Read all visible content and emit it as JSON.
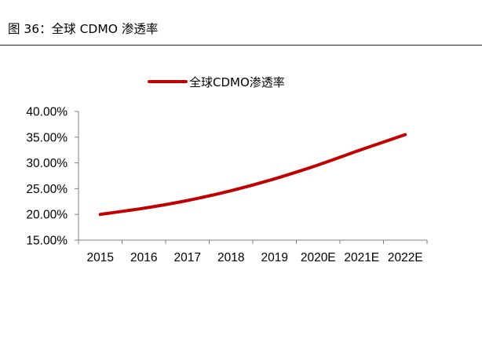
{
  "figure": {
    "caption": "图 36：全球 CDMO 渗透率"
  },
  "chart_data": {
    "type": "line",
    "categories": [
      "2015",
      "2016",
      "2017",
      "2018",
      "2019",
      "2020E",
      "2021E",
      "2022E"
    ],
    "series": [
      {
        "name": "全球CDMO渗透率",
        "values": [
          20.0,
          21.2,
          22.7,
          24.6,
          26.9,
          29.6,
          32.6,
          35.5
        ],
        "color": "#c00000"
      }
    ],
    "ylim": [
      15,
      40
    ],
    "yticks": [
      15,
      20,
      25,
      30,
      35,
      40
    ],
    "ytick_labels": [
      "15.00%",
      "20.00%",
      "25.00%",
      "30.00%",
      "35.00%",
      "40.00%"
    ],
    "y_unit": "percent",
    "grid": false,
    "legend_position": "top-center"
  }
}
